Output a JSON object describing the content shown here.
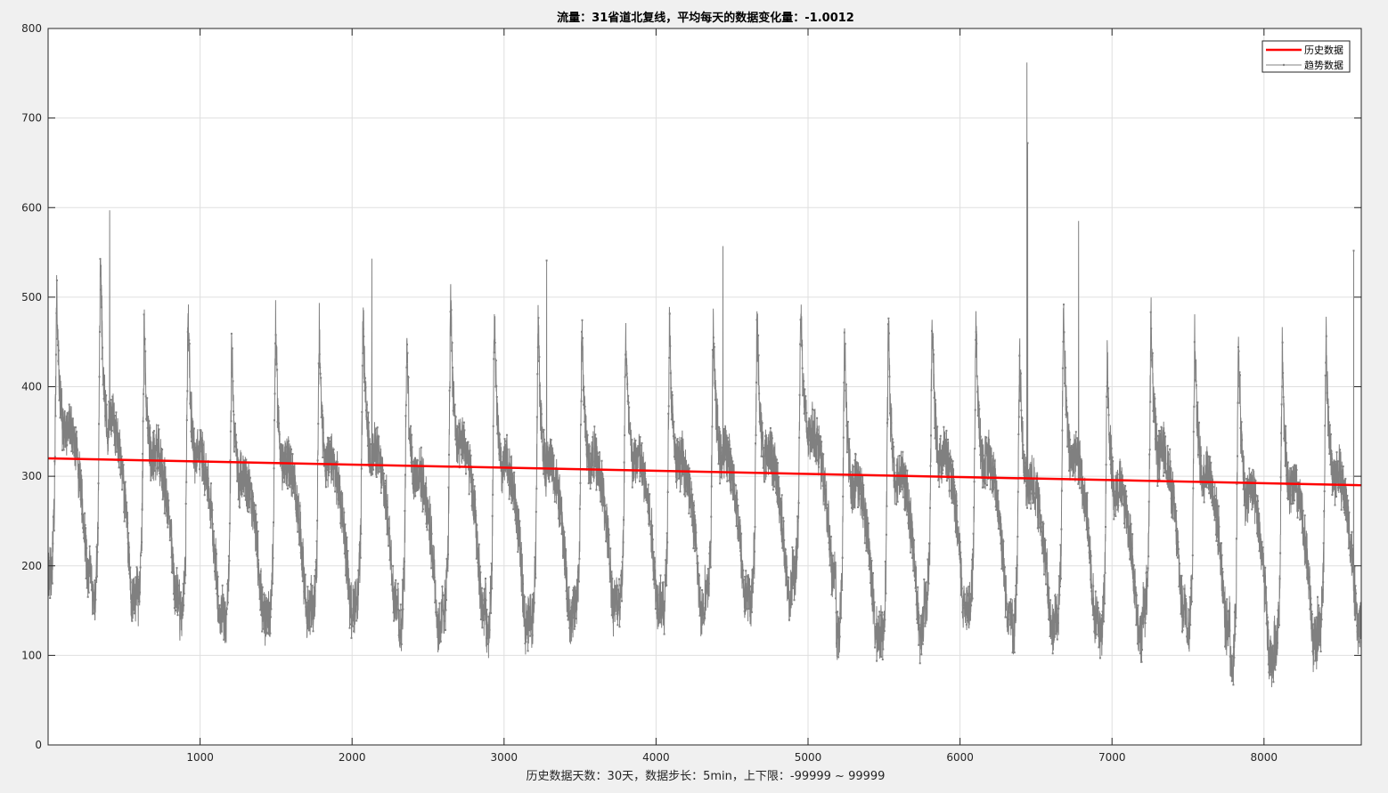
{
  "chart_data": {
    "type": "line",
    "title": "流量：31省道北复线，平均每天的数据变化量：-1.0012",
    "xlabel": "历史数据天数：30天，数据步长：5min，上下限：-99999 ~ 99999",
    "ylabel": "",
    "xlim": [
      0,
      8640
    ],
    "ylim": [
      0,
      800
    ],
    "xticks": [
      1000,
      2000,
      3000,
      4000,
      5000,
      6000,
      7000,
      8000
    ],
    "yticks": [
      0,
      100,
      200,
      300,
      400,
      500,
      600,
      700,
      800
    ],
    "grid": true,
    "legend_position": "top-right",
    "series": [
      {
        "name": "趋势数据",
        "color": "#808080",
        "style": "line-with-dot-markers",
        "step": 1,
        "x_range": [
          1,
          8640
        ],
        "daily_profile": {
          "period": 288,
          "phase_start": 0,
          "keypoints": [
            [
              0,
              205
            ],
            [
              20,
              200
            ],
            [
              40,
              255
            ],
            [
              55,
              470
            ],
            [
              70,
              390
            ],
            [
              85,
              360
            ],
            [
              100,
              335
            ],
            [
              140,
              345
            ],
            [
              180,
              320
            ],
            [
              210,
              290
            ],
            [
              235,
              250
            ],
            [
              260,
              200
            ],
            [
              288,
              205
            ]
          ]
        },
        "approx_daily_peaks": [
          505,
          545,
          470,
          490,
          450,
          470,
          465,
          480,
          460,
          505,
          480,
          475,
          470,
          465,
          470,
          475,
          480,
          495,
          455,
          470,
          480,
          470,
          440,
          490,
          440,
          485,
          465,
          460,
          450,
          460
        ],
        "approx_daily_minima": [
          190,
          160,
          165,
          145,
          140,
          145,
          150,
          160,
          130,
          150,
          130,
          140,
          155,
          160,
          150,
          165,
          160,
          190,
          120,
          120,
          155,
          150,
          130,
          140,
          120,
          150,
          130,
          90,
          110,
          130
        ],
        "notable_points": [
          {
            "x": 405,
            "y": 597
          },
          {
            "x": 2130,
            "y": 543
          },
          {
            "x": 3280,
            "y": 541
          },
          {
            "x": 4440,
            "y": 557
          },
          {
            "x": 5200,
            "y": 98
          },
          {
            "x": 6440,
            "y": 762
          },
          {
            "x": 6445,
            "y": 672
          },
          {
            "x": 6780,
            "y": 585
          },
          {
            "x": 7790,
            "y": 72
          },
          {
            "x": 8590,
            "y": 552
          }
        ],
        "noise_amplitude": 35,
        "seed": 17
      },
      {
        "name": "历史数据",
        "color": "#ff0000",
        "style": "line",
        "x": [
          0,
          8640
        ],
        "y": [
          320,
          290
        ]
      }
    ]
  }
}
